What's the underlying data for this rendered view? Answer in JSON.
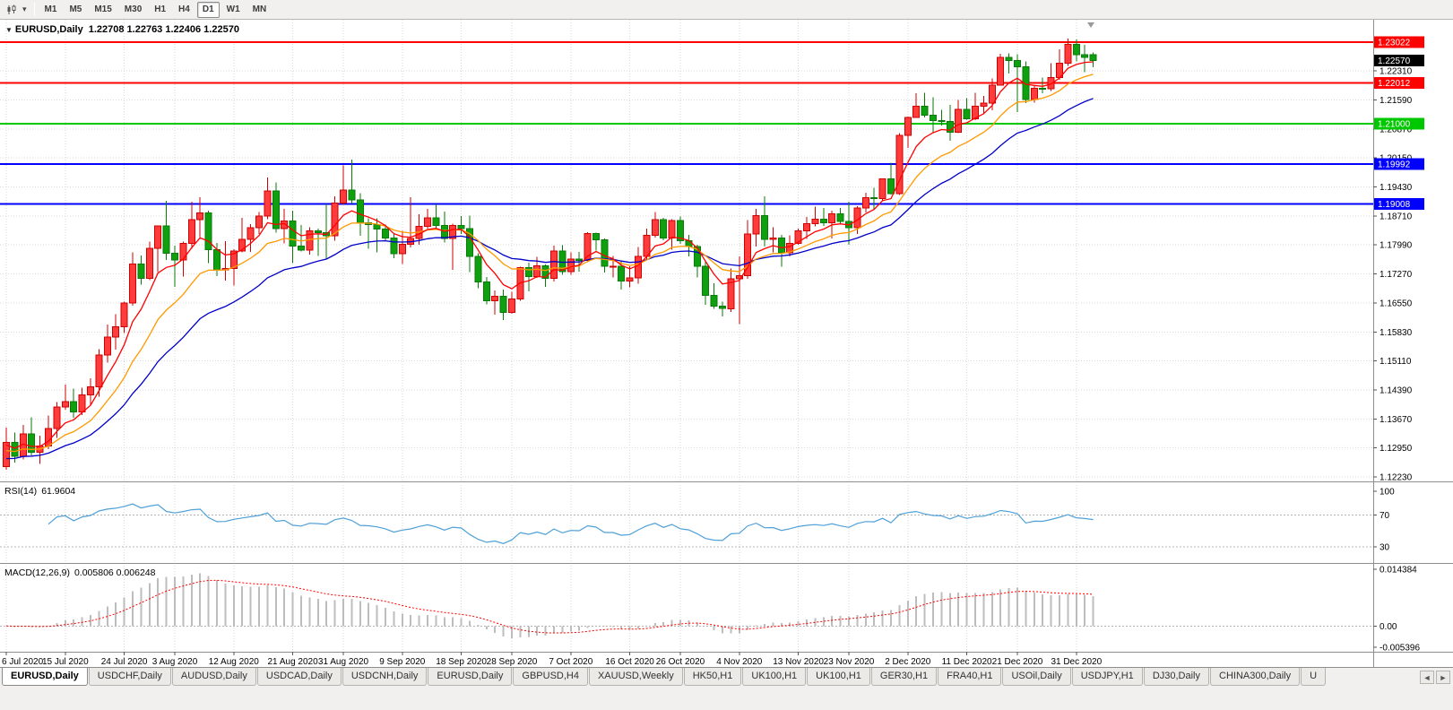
{
  "toolbar": {
    "caret": "▾",
    "timeframes": [
      {
        "label": "M1",
        "active": false
      },
      {
        "label": "M5",
        "active": false
      },
      {
        "label": "M15",
        "active": false
      },
      {
        "label": "M30",
        "active": false
      },
      {
        "label": "H1",
        "active": false
      },
      {
        "label": "H4",
        "active": false
      },
      {
        "label": "D1",
        "active": true
      },
      {
        "label": "W1",
        "active": false
      },
      {
        "label": "MN",
        "active": false
      }
    ]
  },
  "chart": {
    "title": {
      "caret": "▼",
      "symbol": "EURUSD,Daily",
      "ohlc": "1.22708 1.22763 1.22406 1.22570"
    },
    "rsi_label": "RSI(14)",
    "rsi_value": "61.9604",
    "macd_label": "MACD(12,26,9)",
    "macd_value": "0.005806 0.006248"
  },
  "chart_data": {
    "type": "candlestick",
    "symbol": "EURUSD",
    "timeframe": "Daily",
    "current_bar": {
      "open": 1.22708,
      "high": 1.22763,
      "low": 1.22406,
      "close": 1.2257
    },
    "price_range": [
      1.1212,
      1.2358
    ],
    "colors": {
      "bull_fill": "#FF3B3B",
      "bull_border": "#CF0000",
      "bear_fill": "#0FA00F",
      "bear_border": "#0A7A0A"
    },
    "y_ticks": [
      "1.22310",
      "1.21590",
      "1.20870",
      "1.20150",
      "1.19430",
      "1.18710",
      "1.17990",
      "1.17270",
      "1.16550",
      "1.15830",
      "1.15110",
      "1.14390",
      "1.13670",
      "1.12950",
      "1.12230"
    ],
    "x_ticks": [
      {
        "index": 0,
        "label": "6 Jul 2020"
      },
      {
        "index": 7,
        "label": "15 Jul 2020"
      },
      {
        "index": 14,
        "label": "24 Jul 2020"
      },
      {
        "index": 20,
        "label": "3 Aug 2020"
      },
      {
        "index": 27,
        "label": "12 Aug 2020"
      },
      {
        "index": 34,
        "label": "21 Aug 2020"
      },
      {
        "index": 40,
        "label": "31 Aug 2020"
      },
      {
        "index": 47,
        "label": "9 Sep 2020"
      },
      {
        "index": 54,
        "label": "18 Sep 2020"
      },
      {
        "index": 60,
        "label": "28 Sep 2020"
      },
      {
        "index": 67,
        "label": "7 Oct 2020"
      },
      {
        "index": 74,
        "label": "16 Oct 2020"
      },
      {
        "index": 80,
        "label": "26 Oct 2020"
      },
      {
        "index": 87,
        "label": "4 Nov 2020"
      },
      {
        "index": 94,
        "label": "13 Nov 2020"
      },
      {
        "index": 100,
        "label": "23 Nov 2020"
      },
      {
        "index": 107,
        "label": "2 Dec 2020"
      },
      {
        "index": 114,
        "label": "11 Dec 2020"
      },
      {
        "index": 120,
        "label": "21 Dec 2020"
      },
      {
        "index": 127,
        "label": "31 Dec 2020"
      }
    ],
    "hlines": [
      {
        "price": 1.23022,
        "label": "1.23022",
        "color": "#FF0000"
      },
      {
        "price": 1.22012,
        "label": "1.22012",
        "color": "#FF0000"
      },
      {
        "price": 1.21,
        "label": "1.21000",
        "color": "#00C800"
      },
      {
        "price": 1.19992,
        "label": "1.19992",
        "color": "#0000FF"
      },
      {
        "price": 1.19008,
        "label": "1.19008",
        "color": "#0000FF"
      }
    ],
    "current_price": {
      "value": 1.2257,
      "label": "1.22570",
      "bg": "#000000"
    },
    "moving_averages": [
      {
        "name": "ma-slow-line",
        "period": 24,
        "seed": 1.1265,
        "color": "#0000C8"
      },
      {
        "name": "ma-mid-line",
        "period": 13,
        "seed": 1.1285,
        "color": "#FF9900"
      },
      {
        "name": "ma-fast-line",
        "period": 6,
        "seed": 1.13,
        "color": "#FF0000"
      }
    ],
    "candles": [
      [
        1.1249,
        1.1346,
        1.1241,
        1.1309
      ],
      [
        1.1309,
        1.1333,
        1.1259,
        1.1274
      ],
      [
        1.1274,
        1.1352,
        1.1266,
        1.133
      ],
      [
        1.133,
        1.1371,
        1.1276,
        1.1284
      ],
      [
        1.1284,
        1.1325,
        1.1255,
        1.13
      ],
      [
        1.13,
        1.1375,
        1.1292,
        1.1343
      ],
      [
        1.1343,
        1.1409,
        1.132,
        1.1397
      ],
      [
        1.1397,
        1.1452,
        1.139,
        1.141
      ],
      [
        1.141,
        1.1442,
        1.137,
        1.1384
      ],
      [
        1.1384,
        1.1444,
        1.1377,
        1.1427
      ],
      [
        1.1427,
        1.1468,
        1.1402,
        1.1447
      ],
      [
        1.1447,
        1.154,
        1.1422,
        1.1526
      ],
      [
        1.1526,
        1.1601,
        1.1507,
        1.157
      ],
      [
        1.157,
        1.1627,
        1.1539,
        1.1596
      ],
      [
        1.1596,
        1.1658,
        1.158,
        1.1655
      ],
      [
        1.1655,
        1.1781,
        1.1648,
        1.1752
      ],
      [
        1.1752,
        1.1773,
        1.17,
        1.1716
      ],
      [
        1.1716,
        1.1807,
        1.1712,
        1.1791
      ],
      [
        1.1791,
        1.1847,
        1.1732,
        1.1846
      ],
      [
        1.1846,
        1.1909,
        1.1762,
        1.1778
      ],
      [
        1.1778,
        1.1797,
        1.1695,
        1.1762
      ],
      [
        1.1762,
        1.1807,
        1.1721,
        1.1803
      ],
      [
        1.1803,
        1.1906,
        1.179,
        1.1862
      ],
      [
        1.1862,
        1.1917,
        1.1818,
        1.1878
      ],
      [
        1.1878,
        1.1884,
        1.1754,
        1.1787
      ],
      [
        1.1787,
        1.1804,
        1.1722,
        1.1737
      ],
      [
        1.1737,
        1.1808,
        1.1711,
        1.174
      ],
      [
        1.174,
        1.1788,
        1.1698,
        1.1784
      ],
      [
        1.1784,
        1.1866,
        1.1781,
        1.1813
      ],
      [
        1.1813,
        1.1851,
        1.1782,
        1.1842
      ],
      [
        1.1842,
        1.1881,
        1.1826,
        1.1871
      ],
      [
        1.1871,
        1.1966,
        1.1863,
        1.1933
      ],
      [
        1.1933,
        1.1954,
        1.183,
        1.1839
      ],
      [
        1.1839,
        1.1889,
        1.1803,
        1.1858
      ],
      [
        1.1858,
        1.1884,
        1.1754,
        1.1796
      ],
      [
        1.1796,
        1.1848,
        1.1783,
        1.1786
      ],
      [
        1.1786,
        1.1843,
        1.1775,
        1.1834
      ],
      [
        1.1834,
        1.1839,
        1.1772,
        1.183
      ],
      [
        1.183,
        1.1901,
        1.1763,
        1.1822
      ],
      [
        1.1822,
        1.192,
        1.1809,
        1.1903
      ],
      [
        1.1903,
        1.1996,
        1.1898,
        1.1935
      ],
      [
        1.1935,
        1.2011,
        1.1902,
        1.1911
      ],
      [
        1.1911,
        1.1927,
        1.1822,
        1.1854
      ],
      [
        1.1854,
        1.1865,
        1.1789,
        1.185
      ],
      [
        1.185,
        1.1865,
        1.1781,
        1.1838
      ],
      [
        1.1838,
        1.1849,
        1.1809,
        1.1816
      ],
      [
        1.1816,
        1.1827,
        1.1766,
        1.1777
      ],
      [
        1.1777,
        1.1834,
        1.1752,
        1.1801
      ],
      [
        1.1801,
        1.1917,
        1.1793,
        1.1815
      ],
      [
        1.1815,
        1.1875,
        1.1799,
        1.1845
      ],
      [
        1.1845,
        1.1888,
        1.1839,
        1.1866
      ],
      [
        1.1866,
        1.19,
        1.184,
        1.1847
      ],
      [
        1.1847,
        1.1882,
        1.1805,
        1.1815
      ],
      [
        1.1815,
        1.1852,
        1.1737,
        1.1847
      ],
      [
        1.1847,
        1.1871,
        1.1826,
        1.1839
      ],
      [
        1.1839,
        1.1872,
        1.1732,
        1.1771
      ],
      [
        1.1771,
        1.1778,
        1.1692,
        1.1707
      ],
      [
        1.1707,
        1.1719,
        1.1651,
        1.166
      ],
      [
        1.166,
        1.1686,
        1.1626,
        1.1672
      ],
      [
        1.1672,
        1.1688,
        1.1612,
        1.1631
      ],
      [
        1.1631,
        1.1683,
        1.1628,
        1.1665
      ],
      [
        1.1665,
        1.1745,
        1.166,
        1.1743
      ],
      [
        1.1743,
        1.1755,
        1.1684,
        1.1721
      ],
      [
        1.1721,
        1.1769,
        1.1717,
        1.1747
      ],
      [
        1.1747,
        1.1751,
        1.1695,
        1.1716
      ],
      [
        1.1716,
        1.1797,
        1.1708,
        1.1784
      ],
      [
        1.1784,
        1.1798,
        1.1725,
        1.1733
      ],
      [
        1.1733,
        1.1781,
        1.1725,
        1.1764
      ],
      [
        1.1764,
        1.1782,
        1.1733,
        1.176
      ],
      [
        1.176,
        1.1831,
        1.1756,
        1.1827
      ],
      [
        1.1827,
        1.183,
        1.1785,
        1.1812
      ],
      [
        1.1812,
        1.1815,
        1.1731,
        1.1746
      ],
      [
        1.1746,
        1.1772,
        1.1718,
        1.1746
      ],
      [
        1.1746,
        1.1758,
        1.1688,
        1.1709
      ],
      [
        1.1709,
        1.1746,
        1.1694,
        1.1717
      ],
      [
        1.1717,
        1.1794,
        1.1703,
        1.177
      ],
      [
        1.177,
        1.184,
        1.1761,
        1.1823
      ],
      [
        1.1823,
        1.1881,
        1.1817,
        1.1862
      ],
      [
        1.1862,
        1.1866,
        1.1811,
        1.1816
      ],
      [
        1.1816,
        1.1863,
        1.1787,
        1.186
      ],
      [
        1.186,
        1.187,
        1.1802,
        1.181
      ],
      [
        1.181,
        1.1824,
        1.177,
        1.1795
      ],
      [
        1.1795,
        1.18,
        1.1718,
        1.1746
      ],
      [
        1.1746,
        1.1759,
        1.165,
        1.1674
      ],
      [
        1.1674,
        1.1704,
        1.164,
        1.1647
      ],
      [
        1.1647,
        1.1658,
        1.1622,
        1.1641
      ],
      [
        1.1641,
        1.174,
        1.1633,
        1.1715
      ],
      [
        1.1715,
        1.177,
        1.1603,
        1.1723
      ],
      [
        1.1723,
        1.1861,
        1.1715,
        1.1826
      ],
      [
        1.1826,
        1.1888,
        1.1795,
        1.1872
      ],
      [
        1.1872,
        1.192,
        1.1795,
        1.1813
      ],
      [
        1.1813,
        1.1843,
        1.1781,
        1.1816
      ],
      [
        1.1816,
        1.1824,
        1.1745,
        1.1779
      ],
      [
        1.1779,
        1.1823,
        1.1771,
        1.1803
      ],
      [
        1.1803,
        1.1839,
        1.1799,
        1.1834
      ],
      [
        1.1834,
        1.1869,
        1.1814,
        1.1852
      ],
      [
        1.1852,
        1.1894,
        1.1845,
        1.1863
      ],
      [
        1.1863,
        1.1891,
        1.1846,
        1.1854
      ],
      [
        1.1854,
        1.1884,
        1.1815,
        1.1876
      ],
      [
        1.1876,
        1.1891,
        1.1849,
        1.1857
      ],
      [
        1.1857,
        1.1906,
        1.18,
        1.1842
      ],
      [
        1.1842,
        1.1895,
        1.1826,
        1.1891
      ],
      [
        1.1891,
        1.1929,
        1.188,
        1.1916
      ],
      [
        1.1916,
        1.1941,
        1.1886,
        1.1914
      ],
      [
        1.1914,
        1.1964,
        1.1908,
        1.1963
      ],
      [
        1.1963,
        1.2003,
        1.1924,
        1.1926
      ],
      [
        1.1926,
        1.2077,
        1.1923,
        1.2071
      ],
      [
        1.2071,
        1.2118,
        1.204,
        1.2115
      ],
      [
        1.2115,
        1.2175,
        1.2114,
        1.2143
      ],
      [
        1.2143,
        1.2177,
        1.2115,
        1.2121
      ],
      [
        1.2121,
        1.2165,
        1.2079,
        1.2108
      ],
      [
        1.2108,
        1.2134,
        1.2095,
        1.2105
      ],
      [
        1.2105,
        1.2147,
        1.2058,
        1.2079
      ],
      [
        1.2079,
        1.2159,
        1.2076,
        1.2135
      ],
      [
        1.2135,
        1.2163,
        1.211,
        1.2112
      ],
      [
        1.2112,
        1.2177,
        1.2109,
        1.2143
      ],
      [
        1.2143,
        1.2169,
        1.2123,
        1.2151
      ],
      [
        1.2151,
        1.2212,
        1.2133,
        1.2196
      ],
      [
        1.2196,
        1.2273,
        1.2195,
        1.2265
      ],
      [
        1.2265,
        1.2274,
        1.2225,
        1.2257
      ],
      [
        1.2257,
        1.2272,
        1.2129,
        1.2241
      ],
      [
        1.2241,
        1.2254,
        1.2151,
        1.216
      ],
      [
        1.216,
        1.2196,
        1.2152,
        1.2188
      ],
      [
        1.2188,
        1.2214,
        1.2176,
        1.2187
      ],
      [
        1.2187,
        1.225,
        1.2181,
        1.2214
      ],
      [
        1.2214,
        1.2285,
        1.2209,
        1.225
      ],
      [
        1.225,
        1.2311,
        1.2243,
        1.2297
      ],
      [
        1.2297,
        1.2309,
        1.2254,
        1.2271
      ],
      [
        1.2271,
        1.2296,
        1.2228,
        1.2265
      ],
      [
        1.22708,
        1.22763,
        1.22406,
        1.2257
      ]
    ],
    "indicators": {
      "rsi": {
        "label": "RSI(14)",
        "value": "61.9604",
        "period": 14,
        "color": "#4FA0D8",
        "range": [
          10,
          110
        ],
        "levels": [
          {
            "label": "100",
            "value": 100,
            "line": false
          },
          {
            "label": "70",
            "value": 70,
            "line": true
          },
          {
            "label": "30",
            "value": 30,
            "line": true
          }
        ]
      },
      "macd": {
        "label": "MACD(12,26,9)",
        "values": "0.005806 0.006248",
        "fast": 12,
        "slow": 26,
        "signal": 9,
        "histogram_color": "#BDBDBD",
        "signal_color": "#FF0000",
        "range": [
          -0.0065,
          0.0155
        ],
        "scale_labels": [
          {
            "label": "0.014384",
            "value": 0.014384
          },
          {
            "label": "0.00",
            "value": 0
          },
          {
            "label": "-0.005396",
            "value": -0.005396
          }
        ]
      }
    }
  },
  "tabs": {
    "nav_left": "◄",
    "nav_right": "►",
    "items": [
      {
        "label": "EURUSD,Daily",
        "active": true
      },
      {
        "label": "USDCHF,Daily",
        "active": false
      },
      {
        "label": "AUDUSD,Daily",
        "active": false
      },
      {
        "label": "USDCAD,Daily",
        "active": false
      },
      {
        "label": "USDCNH,Daily",
        "active": false
      },
      {
        "label": "EURUSD,Daily",
        "active": false
      },
      {
        "label": "GBPUSD,H4",
        "active": false
      },
      {
        "label": "XAUUSD,Weekly",
        "active": false
      },
      {
        "label": "HK50,H1",
        "active": false
      },
      {
        "label": "UK100,H1",
        "active": false
      },
      {
        "label": "UK100,H1",
        "active": false
      },
      {
        "label": "GER30,H1",
        "active": false
      },
      {
        "label": "FRA40,H1",
        "active": false
      },
      {
        "label": "USOil,Daily",
        "active": false
      },
      {
        "label": "USDJPY,H1",
        "active": false
      },
      {
        "label": "DJ30,Daily",
        "active": false
      },
      {
        "label": "CHINA300,Daily",
        "active": false
      },
      {
        "label": "U",
        "active": false
      }
    ]
  }
}
